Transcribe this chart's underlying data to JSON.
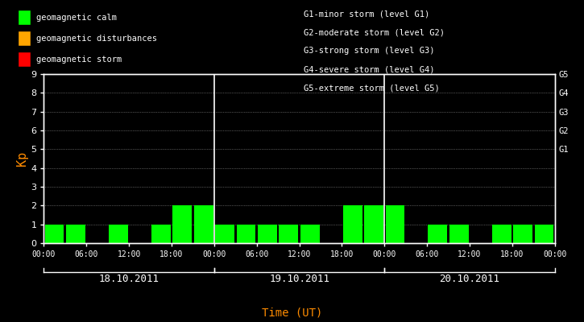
{
  "background_color": "#000000",
  "bar_color_calm": "#00ff00",
  "bar_color_dist": "#ffa500",
  "bar_color_storm": "#ff0000",
  "text_color": "#ffffff",
  "label_color_kp": "#ff8c00",
  "label_color_time": "#ff8c00",
  "days": [
    "18.10.2011",
    "19.10.2011",
    "20.10.2011"
  ],
  "kp_day1": [
    1,
    1,
    0,
    1,
    0,
    1,
    2,
    2
  ],
  "kp_day2": [
    1,
    1,
    1,
    1,
    1,
    0,
    2,
    2
  ],
  "kp_day3": [
    2,
    0,
    1,
    1,
    0,
    1,
    1,
    1
  ],
  "legend_items": [
    {
      "label": "geomagnetic calm",
      "color": "#00ff00"
    },
    {
      "label": "geomagnetic disturbances",
      "color": "#ffa500"
    },
    {
      "label": "geomagnetic storm",
      "color": "#ff0000"
    }
  ],
  "storm_legend": [
    "G1-minor storm (level G1)",
    "G2-moderate storm (level G2)",
    "G3-strong storm (level G3)",
    "G4-severe storm (level G4)",
    "G5-extreme storm (level G5)"
  ],
  "ylabel": "Kp",
  "xlabel": "Time (UT)",
  "ylim": [
    0,
    9
  ],
  "yticks": [
    0,
    1,
    2,
    3,
    4,
    5,
    6,
    7,
    8,
    9
  ],
  "right_ticks_y": [
    5,
    6,
    7,
    8,
    9
  ],
  "right_tick_labels": [
    "G1",
    "G2",
    "G3",
    "G4",
    "G5"
  ]
}
